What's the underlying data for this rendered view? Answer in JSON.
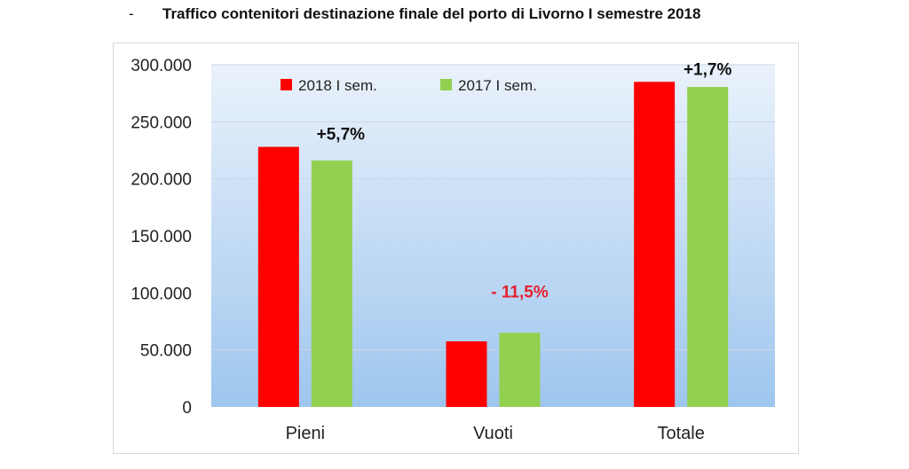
{
  "title_prefix": "-",
  "title": "Traffico contenitori destinazione finale del porto di Livorno I semestre 2018",
  "colors": {
    "series_2018": "#ff0000",
    "series_2017": "#92d050",
    "plot_gradient_top": "#eaf2fb",
    "plot_gradient_bottom": "#9ec6ee",
    "grid": "#c9d6e6",
    "negative_change": "#e8202c",
    "positive_change": "#111111"
  },
  "chart_data": {
    "type": "bar",
    "title": "",
    "xlabel": "",
    "ylabel": "",
    "categories": [
      "Pieni",
      "Vuoti",
      "Totale"
    ],
    "series": [
      {
        "name": "2018 I sem.",
        "values": [
          228000,
          57500,
          285000
        ]
      },
      {
        "name": "2017 I sem.",
        "values": [
          216000,
          65000,
          280500
        ]
      }
    ],
    "ylim": [
      0,
      300000
    ],
    "yticks": [
      0,
      50000,
      100000,
      150000,
      200000,
      250000,
      300000
    ],
    "ytick_labels": [
      "0",
      "50.000",
      "100.000",
      "150.000",
      "200.000",
      "250.000",
      "300.000"
    ],
    "grid": true,
    "legend_position": "top-left",
    "annotations": [
      {
        "category": "Pieni",
        "text": "+5,7%",
        "negative": false
      },
      {
        "category": "Vuoti",
        "text": "- 11,5%",
        "negative": true
      },
      {
        "category": "Totale",
        "text": "+1,7%",
        "negative": false
      }
    ]
  }
}
